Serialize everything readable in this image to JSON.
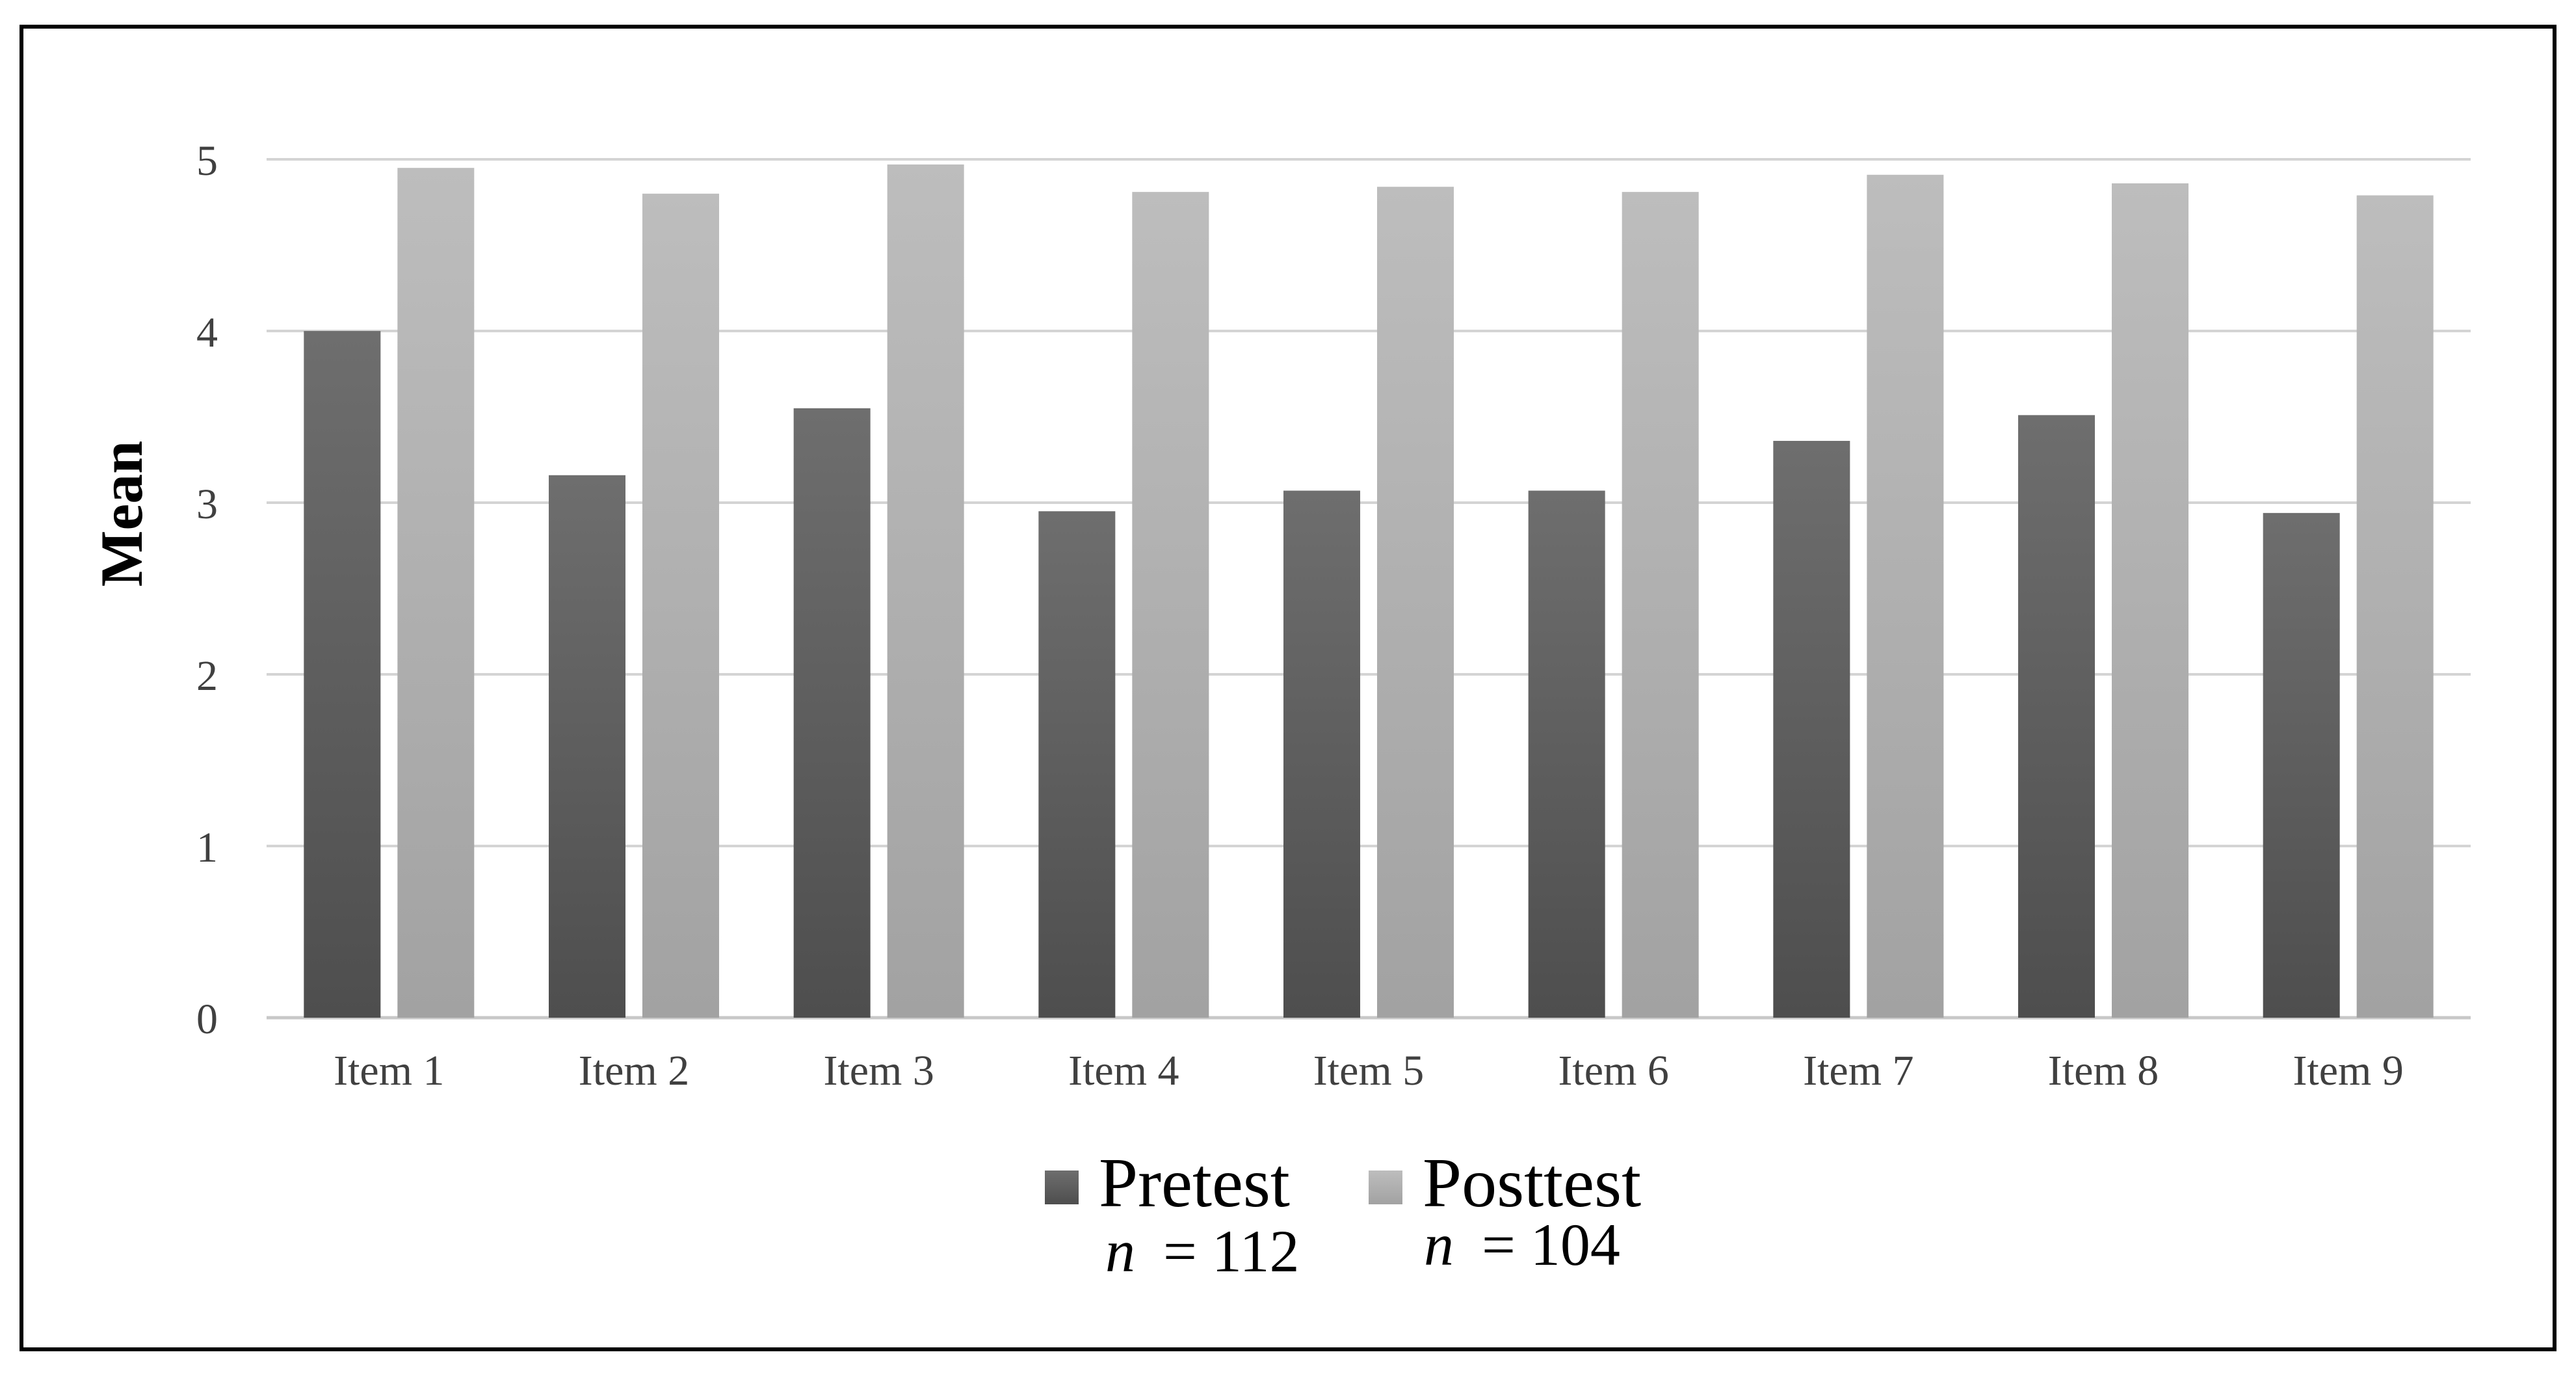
{
  "chart_data": {
    "type": "bar",
    "title": "",
    "xlabel": "",
    "ylabel": "Mean",
    "ylim": [
      0,
      5
    ],
    "yticks": [
      0,
      1,
      2,
      3,
      4,
      5
    ],
    "grid": true,
    "legend_position": "bottom",
    "categories": [
      "Item 1",
      "Item 2",
      "Item 3",
      "Item 4",
      "Item 5",
      "Item 6",
      "Item 7",
      "Item 8",
      "Item 9"
    ],
    "series": [
      {
        "name": "Pretest",
        "n_label": "n",
        "n_value": "= 112",
        "color": "#5a5a5a",
        "values": [
          4.0,
          3.16,
          3.55,
          2.95,
          3.07,
          3.07,
          3.36,
          3.51,
          2.94
        ]
      },
      {
        "name": "Posttest",
        "n_label": "n",
        "n_value": "= 104",
        "color": "#b0b0b0",
        "values": [
          4.95,
          4.8,
          4.97,
          4.81,
          4.84,
          4.81,
          4.91,
          4.86,
          4.79
        ]
      }
    ]
  }
}
